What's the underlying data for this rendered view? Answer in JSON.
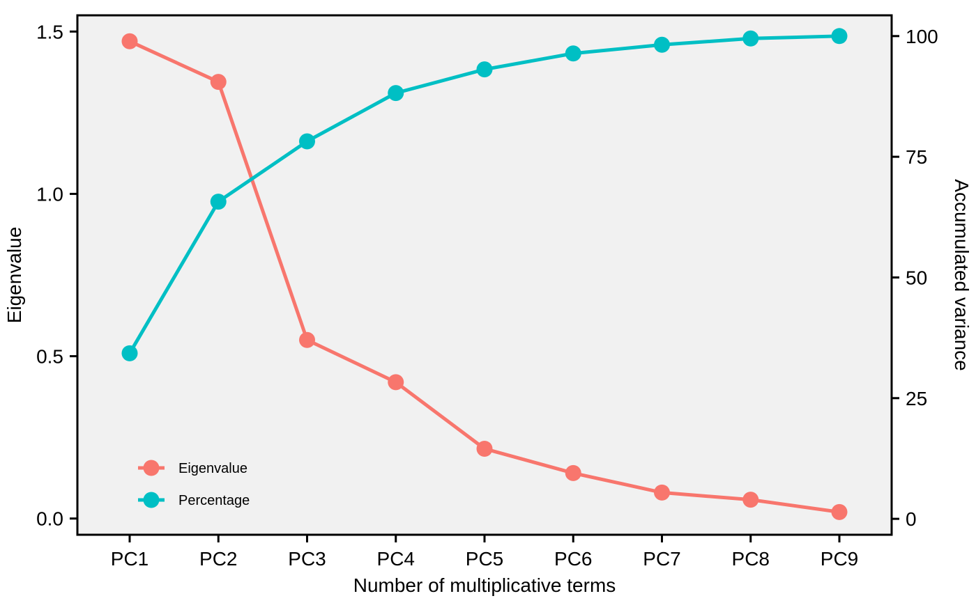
{
  "chart_data": {
    "type": "line",
    "categories": [
      "PC1",
      "PC2",
      "PC3",
      "PC4",
      "PC5",
      "PC6",
      "PC7",
      "PC8",
      "PC9"
    ],
    "xlabel": "Number of multiplicative terms",
    "ylabel_left": "Eigenvalue",
    "ylabel_right": "Accumulated variance",
    "ylim_left": [
      -0.05,
      1.55
    ],
    "ylim_right": [
      -3.3,
      104.3
    ],
    "yticks_left": [
      "0.0",
      "0.5",
      "1.0",
      "1.5"
    ],
    "yticks_left_values": [
      0,
      0.5,
      1.0,
      1.5
    ],
    "yticks_right": [
      "0",
      "25",
      "50",
      "75",
      "100"
    ],
    "yticks_right_values": [
      0,
      25,
      50,
      75,
      100
    ],
    "grid": false,
    "background": "#f1f1f1",
    "legend_position": "bottom-left",
    "series": [
      {
        "name": "Eigenvalue",
        "axis": "left",
        "color": "#f8766d",
        "values": [
          1.47,
          1.345,
          0.55,
          0.42,
          0.215,
          0.14,
          0.08,
          0.058,
          0.02
        ]
      },
      {
        "name": "Percentage",
        "axis": "right",
        "color": "#00bfc4",
        "values": [
          34.3,
          65.7,
          78.2,
          88.2,
          93.1,
          96.4,
          98.2,
          99.5,
          100
        ]
      }
    ]
  }
}
